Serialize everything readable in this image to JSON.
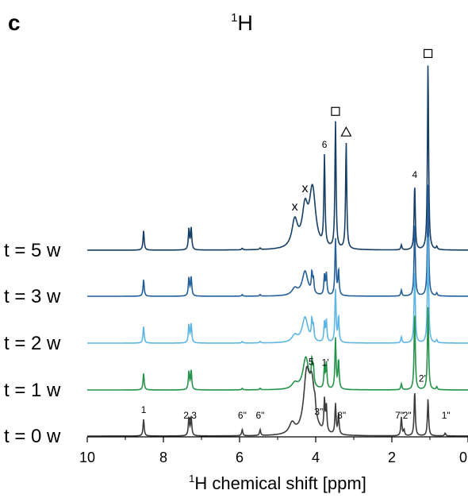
{
  "panel_label": "c",
  "chart_data": {
    "type": "line",
    "title_sup": "1",
    "title_main": "H",
    "xlabel_sup": "1",
    "xlabel_main": "H chemical shift [ppm]",
    "ylabel": "",
    "xlim": [
      10,
      0
    ],
    "x_reversed": true,
    "x_ticks": [
      "10",
      "8",
      "6",
      "4",
      "2",
      "0"
    ],
    "x_tick_values": [
      10,
      8,
      6,
      4,
      2,
      0
    ],
    "grid": false,
    "legend": "none",
    "series": [
      {
        "name": "t = 5 w",
        "color": "#173f66",
        "peaks": [
          [
            8.52,
            1.0
          ],
          [
            7.33,
            1.1
          ],
          [
            7.27,
            1.1
          ],
          [
            5.93,
            0.08
          ],
          [
            5.46,
            0.08
          ],
          [
            4.55,
            1.4
          ],
          [
            4.28,
            1.95
          ],
          [
            4.1,
            1.8
          ],
          [
            4.06,
            1.3
          ],
          [
            3.77,
            4.6
          ],
          [
            3.48,
            6.5
          ],
          [
            3.2,
            5.5
          ],
          [
            1.75,
            0.25
          ],
          [
            1.4,
            3.35
          ],
          [
            1.05,
            9.6
          ],
          [
            0.82,
            0.15
          ]
        ]
      },
      {
        "name": "t = 3 w",
        "color": "#245f9a",
        "peaks": [
          [
            8.52,
            0.85
          ],
          [
            7.33,
            0.95
          ],
          [
            7.27,
            0.95
          ],
          [
            5.93,
            0.08
          ],
          [
            5.46,
            0.08
          ],
          [
            4.55,
            0.35
          ],
          [
            4.28,
            1.25
          ],
          [
            4.1,
            1.0
          ],
          [
            4.06,
            0.7
          ],
          [
            3.77,
            1.0
          ],
          [
            3.72,
            1.1
          ],
          [
            3.48,
            2.9
          ],
          [
            3.4,
            1.3
          ],
          [
            1.75,
            0.3
          ],
          [
            1.4,
            3.8
          ],
          [
            1.05,
            5.8
          ],
          [
            0.82,
            0.15
          ]
        ]
      },
      {
        "name": "t = 2 w",
        "color": "#5eb6e4",
        "peaks": [
          [
            8.52,
            0.85
          ],
          [
            7.33,
            0.95
          ],
          [
            7.27,
            0.95
          ],
          [
            5.93,
            0.08
          ],
          [
            5.46,
            0.08
          ],
          [
            4.55,
            0.35
          ],
          [
            4.28,
            1.3
          ],
          [
            4.1,
            1.0
          ],
          [
            4.06,
            0.7
          ],
          [
            3.77,
            1.0
          ],
          [
            3.72,
            1.1
          ],
          [
            3.48,
            2.7
          ],
          [
            3.4,
            1.3
          ],
          [
            1.75,
            0.3
          ],
          [
            1.4,
            3.8
          ],
          [
            1.05,
            5.5
          ],
          [
            0.82,
            0.15
          ]
        ]
      },
      {
        "name": "t = 1 w",
        "color": "#25934a",
        "peaks": [
          [
            8.52,
            0.85
          ],
          [
            7.33,
            0.95
          ],
          [
            7.27,
            0.95
          ],
          [
            5.93,
            0.08
          ],
          [
            5.46,
            0.08
          ],
          [
            4.55,
            0.3
          ],
          [
            4.26,
            1.65
          ],
          [
            4.1,
            1.2
          ],
          [
            4.06,
            0.9
          ],
          [
            3.77,
            1.1
          ],
          [
            3.72,
            1.3
          ],
          [
            3.48,
            2.6
          ],
          [
            3.4,
            1.5
          ],
          [
            1.75,
            0.3
          ],
          [
            1.4,
            4.0
          ],
          [
            1.05,
            4.3
          ],
          [
            0.82,
            0.15
          ]
        ]
      },
      {
        "name": "t = 0 w",
        "color": "#3d3d3d",
        "peaks": [
          [
            8.52,
            0.85
          ],
          [
            7.33,
            0.95
          ],
          [
            7.27,
            0.95
          ],
          [
            5.93,
            0.32
          ],
          [
            5.46,
            0.3
          ],
          [
            4.62,
            0.55
          ],
          [
            4.24,
            2.8
          ],
          [
            4.1,
            2.4
          ],
          [
            4.02,
            0.45
          ],
          [
            3.77,
            1.6
          ],
          [
            3.72,
            1.3
          ],
          [
            3.48,
            1.55
          ],
          [
            3.4,
            1.0
          ],
          [
            1.75,
            0.95
          ],
          [
            1.68,
            0.3
          ],
          [
            1.4,
            2.3
          ],
          [
            1.05,
            1.9
          ],
          [
            0.6,
            0.15
          ]
        ]
      }
    ],
    "peak_labels": [
      {
        "series": 4,
        "x": 8.52,
        "text": "1"
      },
      {
        "series": 4,
        "x": 7.3,
        "text": "2,3"
      },
      {
        "series": 4,
        "x": 5.93,
        "text": "6\""
      },
      {
        "series": 4,
        "x": 5.46,
        "text": "6\""
      },
      {
        "series": 4,
        "x": 4.12,
        "text": "5"
      },
      {
        "series": 4,
        "x": 3.92,
        "text": "3\""
      },
      {
        "series": 3,
        "x": 3.75,
        "text": "1'"
      },
      {
        "series": 4,
        "x": 3.32,
        "text": "8\""
      },
      {
        "series": 4,
        "x": 1.8,
        "text": "7\""
      },
      {
        "series": 4,
        "x": 1.6,
        "text": "2\""
      },
      {
        "series": 3,
        "x": 1.2,
        "text": "2'"
      },
      {
        "series": 4,
        "x": 0.58,
        "text": "1\""
      },
      {
        "series": 0,
        "x": 3.77,
        "text": "6"
      },
      {
        "series": 0,
        "x": 1.4,
        "text": "4"
      },
      {
        "series": 0,
        "x": 4.55,
        "text": "x",
        "big": true
      },
      {
        "series": 0,
        "x": 4.28,
        "text": "x",
        "big": true
      }
    ],
    "markers": [
      {
        "series": 0,
        "x": 3.48,
        "shape": "square"
      },
      {
        "series": 0,
        "x": 1.05,
        "shape": "square"
      },
      {
        "series": 0,
        "x": 3.2,
        "shape": "triangle"
      }
    ]
  }
}
